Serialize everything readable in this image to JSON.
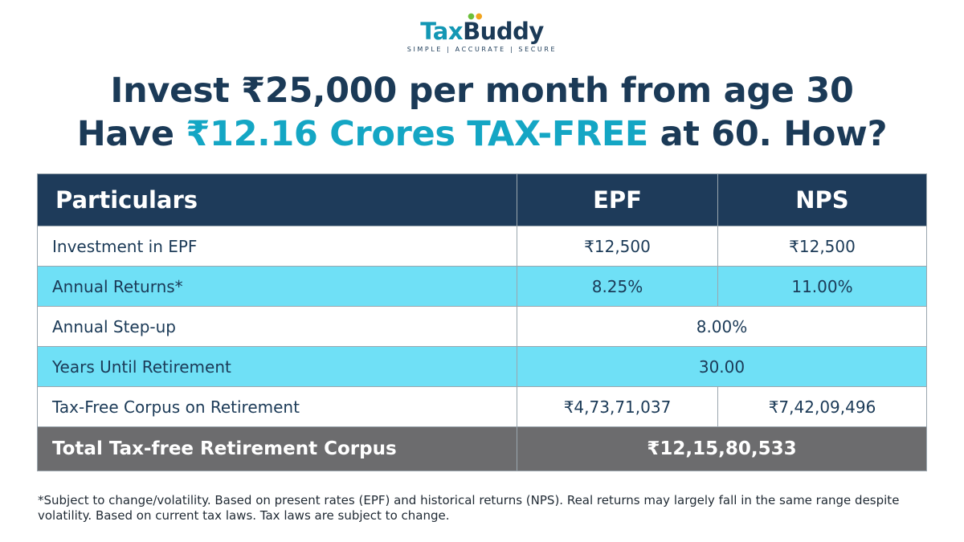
{
  "brand": {
    "name_part1": "Tax",
    "name_part2": "Buddy",
    "tagline": "SIMPLE | ACCURATE | SECURE",
    "colors": {
      "primary": "#1b3a57",
      "accent": "#14a6c4",
      "dot_green": "#6cbf3a",
      "dot_amber": "#f2a41e"
    }
  },
  "headline": {
    "line1": "Invest ₹25,000 per month from age 30",
    "line2_prefix": "Have ",
    "line2_highlight": "₹12.16 Crores TAX-FREE",
    "line2_suffix": " at 60. How?"
  },
  "table": {
    "headers": [
      "Particulars",
      "EPF",
      "NPS"
    ],
    "rows": [
      {
        "label": "Investment in EPF",
        "epf": "₹12,500",
        "nps": "₹12,500"
      },
      {
        "label": "Annual Returns*",
        "epf": "8.25%",
        "nps": "11.00%"
      },
      {
        "label": "Annual Step-up",
        "combined": "8.00%"
      },
      {
        "label": "Years Until Retirement",
        "combined": "30.00"
      },
      {
        "label": "Tax-Free Corpus on Retirement",
        "epf": "₹4,73,71,037",
        "nps": "₹7,42,09,496"
      }
    ],
    "total": {
      "label": "Total Tax-free Retirement Corpus",
      "value": "₹12,15,80,533"
    },
    "colors": {
      "header_bg": "#1e3b5a",
      "stripe_bg": "#6fe0f6",
      "total_bg": "#6c6c6e"
    }
  },
  "footnote": "*Subject to change/volatility. Based on present rates (EPF) and historical returns (NPS). Real returns may largely fall in the same range despite volatility. Based on current tax laws. Tax laws are subject to change."
}
